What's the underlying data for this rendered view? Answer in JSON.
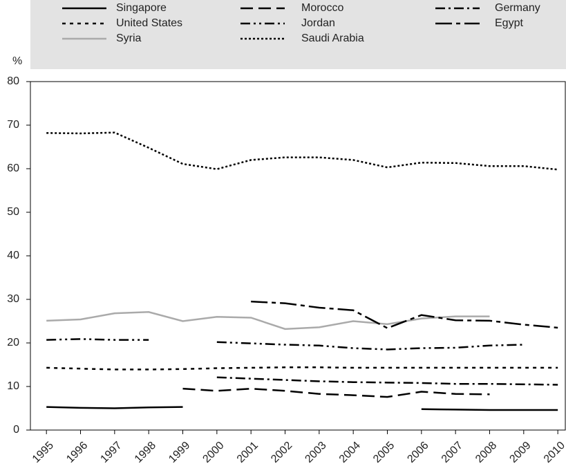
{
  "chart_data": {
    "type": "line",
    "y_label": "%",
    "x": [
      1995,
      1996,
      1997,
      1998,
      1999,
      2000,
      2001,
      2002,
      2003,
      2004,
      2005,
      2006,
      2007,
      2008,
      2009,
      2010
    ],
    "xlim": [
      1994.53,
      2010.22
    ],
    "xticks": [
      1995,
      1996,
      1997,
      1998,
      1999,
      2000,
      2001,
      2002,
      2003,
      2004,
      2005,
      2006,
      2007,
      2008,
      2009,
      2010
    ],
    "ylim": [
      0,
      80
    ],
    "yticks": [
      0,
      10,
      20,
      30,
      40,
      50,
      60,
      70,
      80
    ],
    "grid": false,
    "legend": "top",
    "series": [
      {
        "name": "Singapore",
        "color": "#000000",
        "dash": "solid",
        "values": [
          5.3,
          5.1,
          5.0,
          5.2,
          5.3,
          null,
          null,
          null,
          null,
          null,
          null,
          4.8,
          4.7,
          4.6,
          4.6,
          4.6
        ]
      },
      {
        "name": "United States",
        "color": "#000000",
        "dash": "dot",
        "values": [
          14.3,
          14.1,
          13.9,
          13.9,
          14.0,
          14.2,
          14.3,
          14.4,
          14.4,
          14.3,
          14.3,
          14.3,
          14.3,
          14.3,
          14.3,
          14.3
        ]
      },
      {
        "name": "Syria",
        "color": "#aaaaaa",
        "dash": "solid",
        "values": [
          25.1,
          25.4,
          26.8,
          27.1,
          25.0,
          26.0,
          25.8,
          23.2,
          23.6,
          25.0,
          24.3,
          25.6,
          26.1,
          26.1,
          null,
          null
        ]
      },
      {
        "name": "Morocco",
        "color": "#000000",
        "dash": "dash",
        "values": [
          null,
          null,
          null,
          null,
          9.5,
          9.0,
          9.5,
          9.0,
          8.3,
          8.0,
          7.6,
          8.8,
          8.3,
          8.2,
          null,
          null
        ]
      },
      {
        "name": "Jordan",
        "color": "#000000",
        "dash": "dashdotdot",
        "values": [
          20.7,
          20.9,
          20.7,
          20.7,
          null,
          20.2,
          19.9,
          19.6,
          19.4,
          18.8,
          18.5,
          18.8,
          18.9,
          19.4,
          19.6,
          null
        ]
      },
      {
        "name": "Saudi Arabia",
        "color": "#000000",
        "dash": "densedot",
        "values": [
          68.2,
          68.1,
          68.3,
          64.8,
          61.1,
          59.9,
          62.0,
          62.6,
          62.6,
          62.0,
          60.3,
          61.4,
          61.3,
          60.6,
          60.6,
          59.8
        ]
      },
      {
        "name": "Germany",
        "color": "#000000",
        "dash": "dashdot",
        "values": [
          null,
          null,
          null,
          null,
          null,
          12.1,
          11.8,
          11.5,
          11.2,
          11.0,
          10.9,
          10.8,
          10.6,
          10.6,
          10.5,
          10.4
        ]
      },
      {
        "name": "Egypt",
        "color": "#000000",
        "dash": "longdashdot",
        "values": [
          null,
          null,
          null,
          null,
          null,
          null,
          29.5,
          29.1,
          28.1,
          27.5,
          23.4,
          26.4,
          25.2,
          25.1,
          24.2,
          23.5
        ]
      }
    ]
  }
}
